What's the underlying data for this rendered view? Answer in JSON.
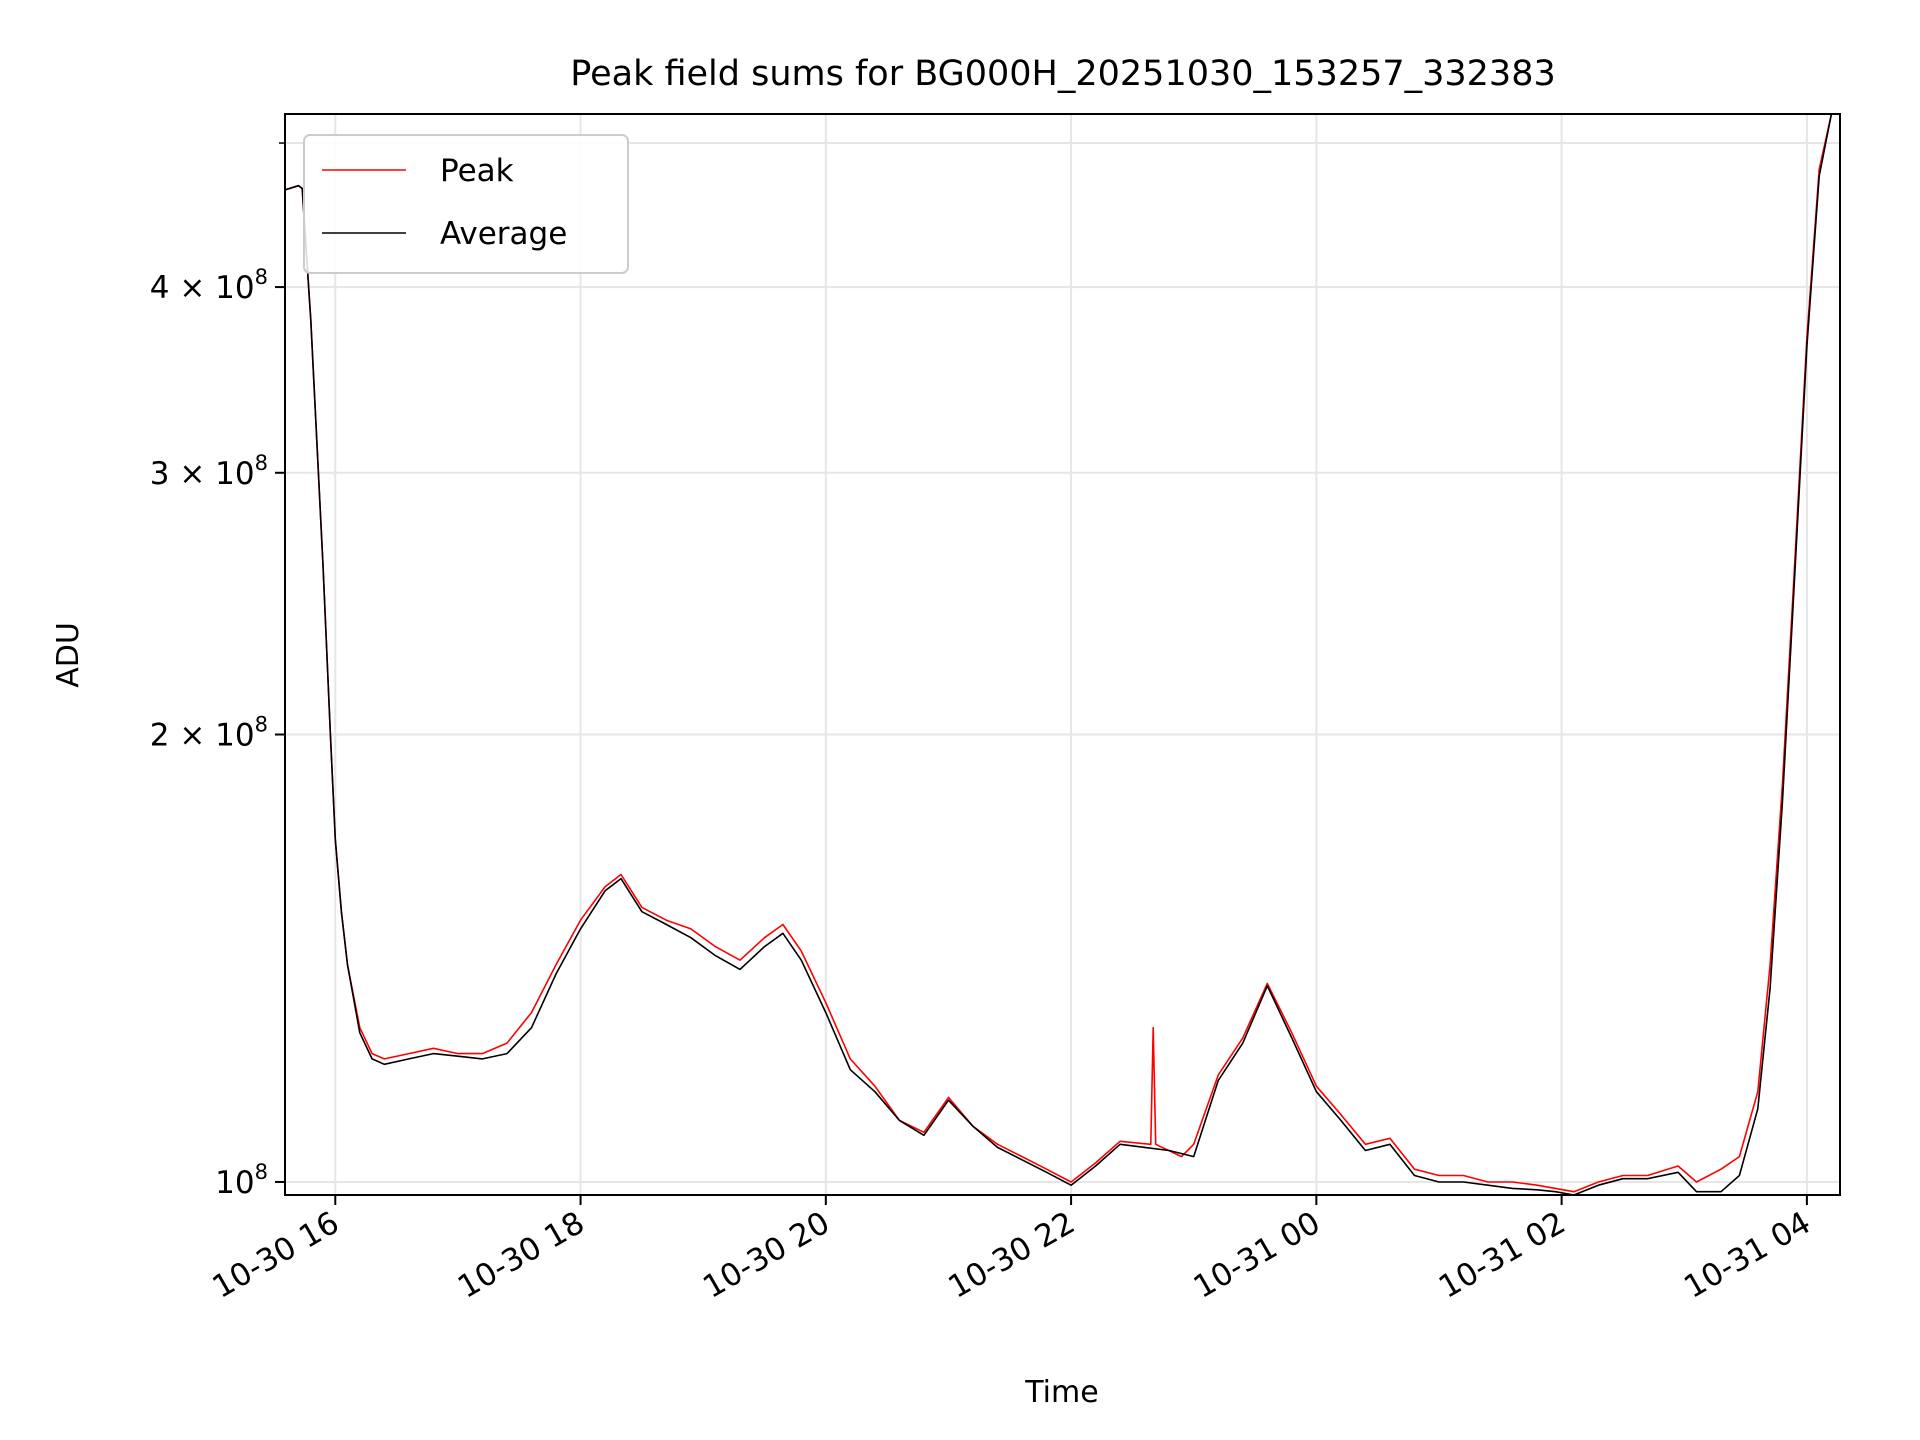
{
  "chart_data": {
    "type": "line",
    "title": "Peak field sums for BG000H_20251030_153257_332383",
    "xlabel": "Time",
    "ylabel": "ADU",
    "yscale": "log",
    "grid": true,
    "legend_position": "top-left",
    "x_unit": "hours since 2025-10-30 00:00",
    "xlim": [
      15.59,
      28.27
    ],
    "ylim": [
      98000000,
      523000000
    ],
    "x_ticks": [
      {
        "value": 16,
        "label": "10-30 16"
      },
      {
        "value": 18,
        "label": "10-30 18"
      },
      {
        "value": 20,
        "label": "10-30 20"
      },
      {
        "value": 22,
        "label": "10-30 22"
      },
      {
        "value": 24,
        "label": "10-31 00"
      },
      {
        "value": 26,
        "label": "10-31 02"
      },
      {
        "value": 28,
        "label": "10-31 04"
      }
    ],
    "y_ticks": [
      {
        "value": 100000000,
        "mantissa": "10",
        "exponent": "8",
        "label": "10^8"
      },
      {
        "value": 200000000,
        "mantissa": "2 × 10",
        "exponent": "8",
        "label": "2 × 10^8"
      },
      {
        "value": 300000000,
        "mantissa": "3 × 10",
        "exponent": "8",
        "label": "3 × 10^8"
      },
      {
        "value": 400000000,
        "mantissa": "4 × 10",
        "exponent": "8",
        "label": "4 × 10^8"
      }
    ],
    "y_minor_ticks": [
      500000000
    ],
    "series": [
      {
        "name": "Peak",
        "color": "#ff0000",
        "x": [
          15.59,
          15.7,
          15.73,
          15.8,
          15.9,
          15.96,
          16.0,
          16.05,
          16.1,
          16.2,
          16.3,
          16.4,
          16.6,
          16.8,
          17.0,
          17.2,
          17.4,
          17.6,
          17.8,
          18.0,
          18.2,
          18.33,
          18.5,
          18.7,
          18.9,
          19.1,
          19.3,
          19.5,
          19.65,
          19.8,
          20.0,
          20.2,
          20.4,
          20.6,
          20.8,
          21.0,
          21.2,
          21.4,
          21.6,
          21.8,
          22.0,
          22.2,
          22.4,
          22.65,
          22.67,
          22.69,
          22.9,
          23.0,
          23.2,
          23.4,
          23.6,
          23.8,
          24.0,
          24.2,
          24.4,
          24.6,
          24.8,
          25.0,
          25.2,
          25.4,
          25.6,
          25.8,
          25.95,
          26.1,
          26.3,
          26.5,
          26.7,
          26.95,
          27.1,
          27.3,
          27.45,
          27.6,
          27.7,
          27.8,
          27.9,
          28.0,
          28.1,
          28.2,
          28.27
        ],
        "values": [
          465000000,
          468000000,
          466000000,
          380000000,
          260000000,
          200000000,
          170000000,
          152000000,
          140000000,
          127000000,
          122000000,
          121000000,
          122000000,
          123000000,
          122000000,
          122000000,
          124000000,
          130000000,
          140000000,
          150000000,
          158000000,
          161000000,
          153000000,
          150000000,
          148000000,
          144000000,
          141000000,
          146000000,
          149000000,
          143000000,
          132000000,
          121000000,
          116000000,
          110000000,
          108000000,
          114000000,
          109000000,
          106000000,
          104000000,
          102000000,
          100000000,
          103000000,
          106500000,
          106000000,
          127000000,
          106000000,
          104000000,
          106000000,
          118000000,
          125000000,
          136000000,
          126000000,
          116000000,
          111000000,
          106000000,
          107000000,
          102000000,
          101000000,
          101000000,
          100000000,
          100000000,
          99500000,
          99000000,
          98500000,
          100000000,
          101000000,
          101000000,
          102500000,
          100000000,
          102000000,
          104000000,
          115000000,
          140000000,
          185000000,
          260000000,
          370000000,
          480000000,
          523000000,
          523000000
        ]
      },
      {
        "name": "Average",
        "color": "#000000",
        "x": [
          15.59,
          15.7,
          15.73,
          15.8,
          15.9,
          15.96,
          16.0,
          16.05,
          16.1,
          16.2,
          16.3,
          16.4,
          16.6,
          16.8,
          17.0,
          17.2,
          17.4,
          17.6,
          17.8,
          18.0,
          18.2,
          18.33,
          18.5,
          18.7,
          18.9,
          19.1,
          19.3,
          19.5,
          19.65,
          19.8,
          20.0,
          20.2,
          20.4,
          20.6,
          20.8,
          21.0,
          21.2,
          21.4,
          21.6,
          21.8,
          22.0,
          22.2,
          22.4,
          22.6,
          22.8,
          23.0,
          23.2,
          23.4,
          23.6,
          23.8,
          24.0,
          24.2,
          24.4,
          24.6,
          24.8,
          25.0,
          25.2,
          25.4,
          25.6,
          25.8,
          25.95,
          26.1,
          26.3,
          26.5,
          26.7,
          26.95,
          27.1,
          27.3,
          27.45,
          27.6,
          27.7,
          27.8,
          27.9,
          28.0,
          28.1,
          28.2,
          28.27
        ],
        "values": [
          465000000,
          468000000,
          466000000,
          380000000,
          260000000,
          200000000,
          170000000,
          152000000,
          140000000,
          126000000,
          121000000,
          120000000,
          121000000,
          122000000,
          121500000,
          121000000,
          122000000,
          127000000,
          138000000,
          148000000,
          157000000,
          160000000,
          152000000,
          149000000,
          146000000,
          142000000,
          139000000,
          144000000,
          147000000,
          141000000,
          130000000,
          119000000,
          115000000,
          110000000,
          107500000,
          113500000,
          109000000,
          105500000,
          103500000,
          101500000,
          99500000,
          102500000,
          106000000,
          105500000,
          105000000,
          104000000,
          117000000,
          124000000,
          135500000,
          125000000,
          115000000,
          110000000,
          105000000,
          106000000,
          101000000,
          100000000,
          100000000,
          99500000,
          99000000,
          98800000,
          98500000,
          98000000,
          99500000,
          100500000,
          100500000,
          101500000,
          98500000,
          98500000,
          101000000,
          112000000,
          135000000,
          180000000,
          255000000,
          365000000,
          475000000,
          523000000,
          523000000
        ]
      }
    ]
  }
}
